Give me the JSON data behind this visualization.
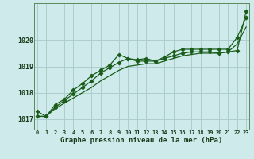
{
  "title": "Graphe pression niveau de la mer (hPa)",
  "background_color": "#ceeaea",
  "grid_color": "#aecece",
  "line_color": "#1a5c1a",
  "x_labels": [
    "0",
    "1",
    "2",
    "3",
    "4",
    "5",
    "6",
    "7",
    "8",
    "9",
    "10",
    "11",
    "12",
    "13",
    "14",
    "15",
    "16",
    "17",
    "18",
    "19",
    "20",
    "21",
    "22",
    "23"
  ],
  "ylim": [
    1016.6,
    1021.4
  ],
  "yticks": [
    1017,
    1018,
    1019,
    1020
  ],
  "line1": [
    1017.3,
    1017.1,
    1017.55,
    1017.75,
    1018.1,
    1018.35,
    1018.65,
    1018.85,
    1019.05,
    1019.45,
    1019.3,
    1019.25,
    1019.3,
    1019.2,
    1019.35,
    1019.55,
    1019.65,
    1019.65,
    1019.65,
    1019.65,
    1019.65,
    1019.65,
    1020.1,
    1020.85
  ],
  "line2": [
    1017.1,
    1017.1,
    1017.45,
    1017.7,
    1017.95,
    1018.2,
    1018.45,
    1018.75,
    1018.95,
    1019.15,
    1019.3,
    1019.2,
    1019.2,
    1019.2,
    1019.3,
    1019.4,
    1019.5,
    1019.55,
    1019.55,
    1019.55,
    1019.5,
    1019.55,
    1019.6,
    1021.1
  ],
  "line3": [
    1017.1,
    1017.1,
    1017.4,
    1017.6,
    1017.8,
    1018.0,
    1018.2,
    1018.45,
    1018.65,
    1018.85,
    1019.0,
    1019.05,
    1019.1,
    1019.1,
    1019.2,
    1019.3,
    1019.4,
    1019.45,
    1019.5,
    1019.5,
    1019.5,
    1019.55,
    1019.85,
    1020.5
  ]
}
